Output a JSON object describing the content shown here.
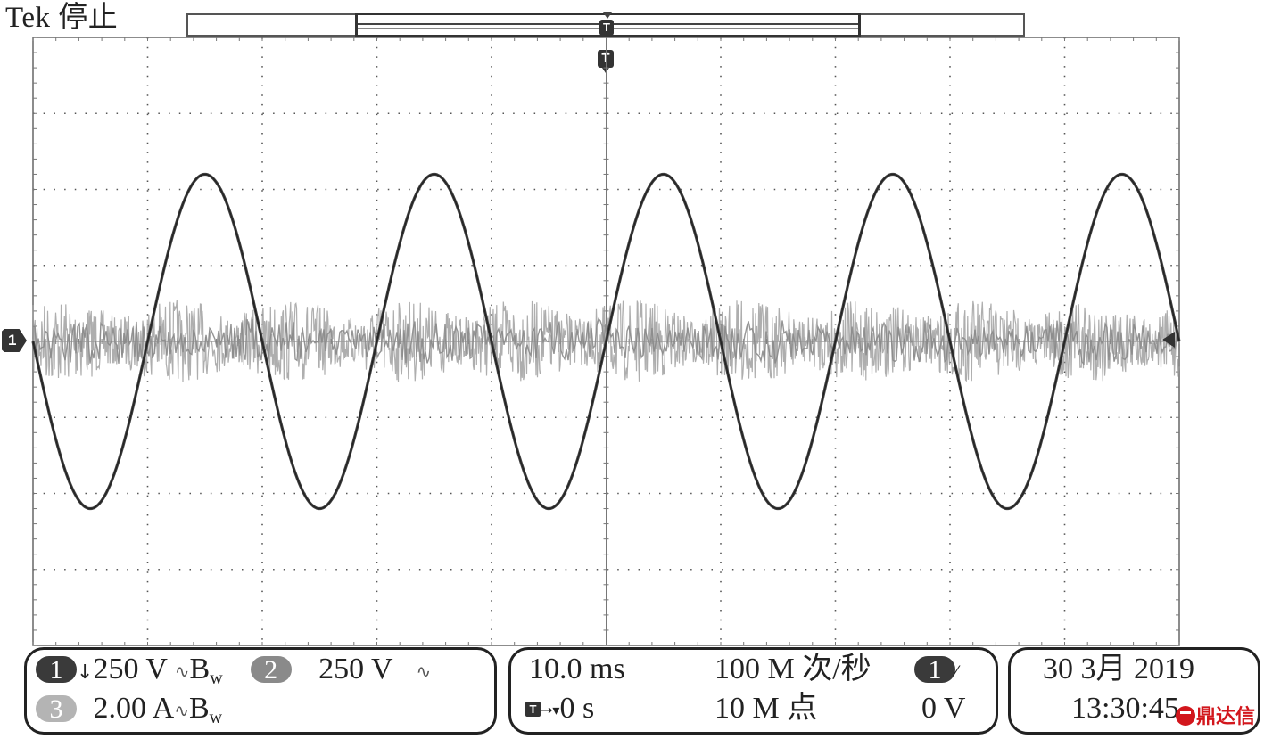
{
  "header": {
    "brand": "Tek",
    "state": "停止"
  },
  "markers": {
    "trigger": "T",
    "channel1": "1"
  },
  "channels": {
    "ch1": {
      "badge": "1",
      "coupling_arrow": "↓",
      "scale": "250 V",
      "bw_icon": "∿",
      "bw": "B",
      "bw_sub": "w"
    },
    "ch2": {
      "badge": "2",
      "scale": "250 V",
      "bw_icon": "∿"
    },
    "ch3": {
      "badge": "3",
      "scale": "2.00 A",
      "bw_icon": "∿",
      "bw": "B",
      "bw_sub": "w"
    }
  },
  "timebase": {
    "scale": "10.0 ms",
    "sample_rate": "100 M 次/秒",
    "trigger_source_badge": "1",
    "trigger_slope_icon": "rising-edge-icon",
    "delay_icon": "T→▼",
    "delay": "0 s",
    "record_length": "10 M 点",
    "trigger_level": "0 V"
  },
  "datetime": {
    "date": "30 3月 2019",
    "time": "13:30:45"
  },
  "watermark": "鼎达信",
  "colors": {
    "grid": "#555555",
    "voltage_trace": "#3f3f3f",
    "current_trace": "#9a9a9a",
    "watermark": "#d2161c"
  },
  "waveform": {
    "voltage_cycles_on_screen": 5,
    "voltage_peak_div": 2.2,
    "current_noise_band_div": 0.55
  }
}
